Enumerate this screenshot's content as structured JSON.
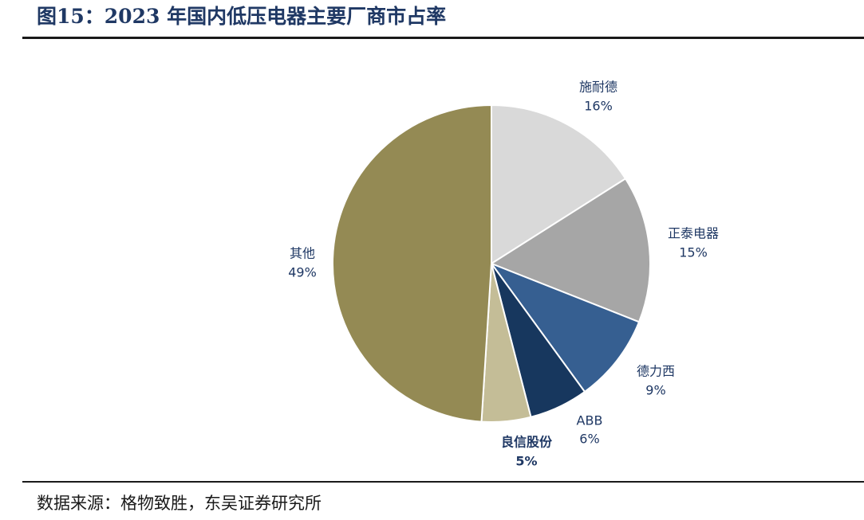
{
  "header": {
    "title": "图15：2023 年国内低压电器主要厂商市占率"
  },
  "footer": {
    "source": "数据来源：格物致胜，东吴证券研究所"
  },
  "chart_data": {
    "type": "pie",
    "title": "",
    "start_angle_deg": 0,
    "direction": "clockwise",
    "slices": [
      {
        "name": "施耐德",
        "label": "16%",
        "value": 16,
        "color": "#d9d9d9",
        "label_color": "#1f3864",
        "bold": false
      },
      {
        "name": "正泰电器",
        "label": "15%",
        "value": 15,
        "color": "#a6a6a6",
        "label_color": "#1f3864",
        "bold": false
      },
      {
        "name": "德力西",
        "label": "9%",
        "value": 9,
        "color": "#365f91",
        "label_color": "#1f3864",
        "bold": false
      },
      {
        "name": "ABB",
        "label": "6%",
        "value": 6,
        "color": "#17375e",
        "label_color": "#1f3864",
        "bold": false
      },
      {
        "name": "良信股份",
        "label": "5%",
        "value": 5,
        "color": "#c4bd97",
        "label_color": "#1f3864",
        "bold": true
      },
      {
        "name": "其他",
        "label": "49%",
        "value": 49,
        "color": "#948a54",
        "label_color": "#1f3864",
        "bold": false
      }
    ]
  }
}
